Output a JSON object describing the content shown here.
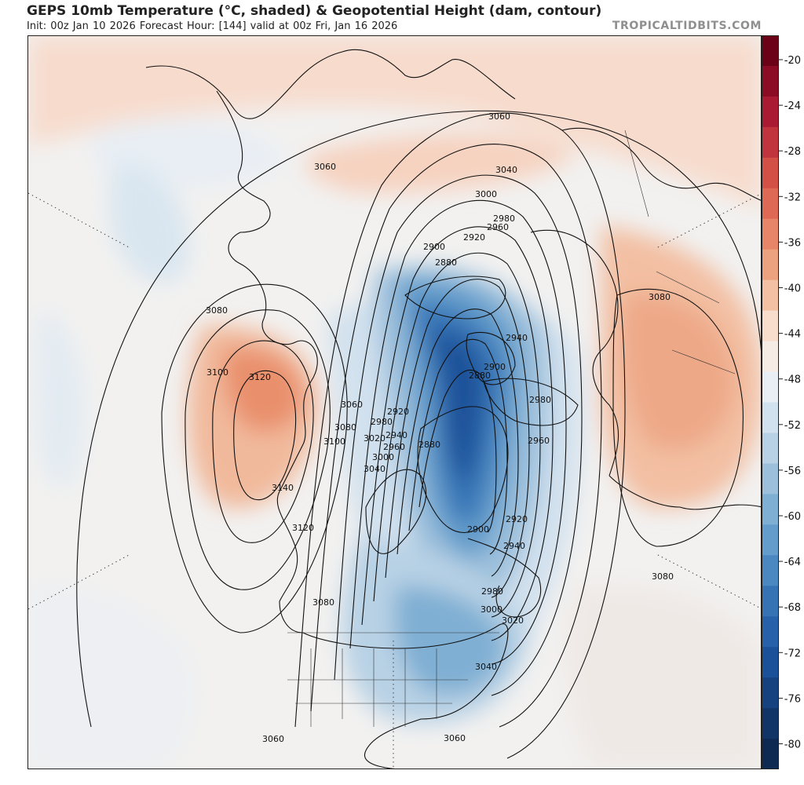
{
  "header": {
    "title": "GEPS 10mb Temperature (°C, shaded) & Geopotential Height (dam, contour)",
    "subtitle": "Init: 00z Jan 10 2026   Forecast Hour: [144]   valid at 00z Fri, Jan 16 2026",
    "site": "TROPICALTIDBITS.COM"
  },
  "colorbar": {
    "unit": "°C",
    "labels": [
      "-20",
      "-24",
      "-28",
      "-32",
      "-36",
      "-40",
      "-44",
      "-48",
      "-52",
      "-56",
      "-60",
      "-64",
      "-68",
      "-72",
      "-76",
      "-80"
    ],
    "colors": [
      "#6b0217",
      "#8c0b25",
      "#ab1a33",
      "#c1343e",
      "#d25046",
      "#de6a55",
      "#e68568",
      "#eca27f",
      "#f3c0a4",
      "#f8ddcc",
      "#f6ece6",
      "#e8eef4",
      "#d2e1ee",
      "#b8d1e5",
      "#9cc0dc",
      "#7fafd3",
      "#649ccb",
      "#4b87c1",
      "#3573b5",
      "#2661a9",
      "#1b5199",
      "#16427f",
      "#123567",
      "#0e2a52"
    ]
  },
  "contour_labels": [
    {
      "text": "3060"
    },
    {
      "text": "3060"
    },
    {
      "text": "3040"
    },
    {
      "text": "3000"
    },
    {
      "text": "2980"
    },
    {
      "text": "2960"
    },
    {
      "text": "2920"
    },
    {
      "text": "2900"
    },
    {
      "text": "2880"
    },
    {
      "text": "3080"
    },
    {
      "text": "3080"
    },
    {
      "text": "3100"
    },
    {
      "text": "3120"
    },
    {
      "text": "3060"
    },
    {
      "text": "3080"
    },
    {
      "text": "3100"
    },
    {
      "text": "2920"
    },
    {
      "text": "2980"
    },
    {
      "text": "3020"
    },
    {
      "text": "2940"
    },
    {
      "text": "2960"
    },
    {
      "text": "3000"
    },
    {
      "text": "3040"
    },
    {
      "text": "2880"
    },
    {
      "text": "3140"
    },
    {
      "text": "3120"
    },
    {
      "text": "2940"
    },
    {
      "text": "2900"
    },
    {
      "text": "2880"
    },
    {
      "text": "2980"
    },
    {
      "text": "2960"
    },
    {
      "text": "2920"
    },
    {
      "text": "2900"
    },
    {
      "text": "2940"
    },
    {
      "text": "2980"
    },
    {
      "text": "3000"
    },
    {
      "text": "3020"
    },
    {
      "text": "3040"
    },
    {
      "text": "3080"
    },
    {
      "text": "3080"
    },
    {
      "text": "3060"
    },
    {
      "text": "3060"
    }
  ]
}
